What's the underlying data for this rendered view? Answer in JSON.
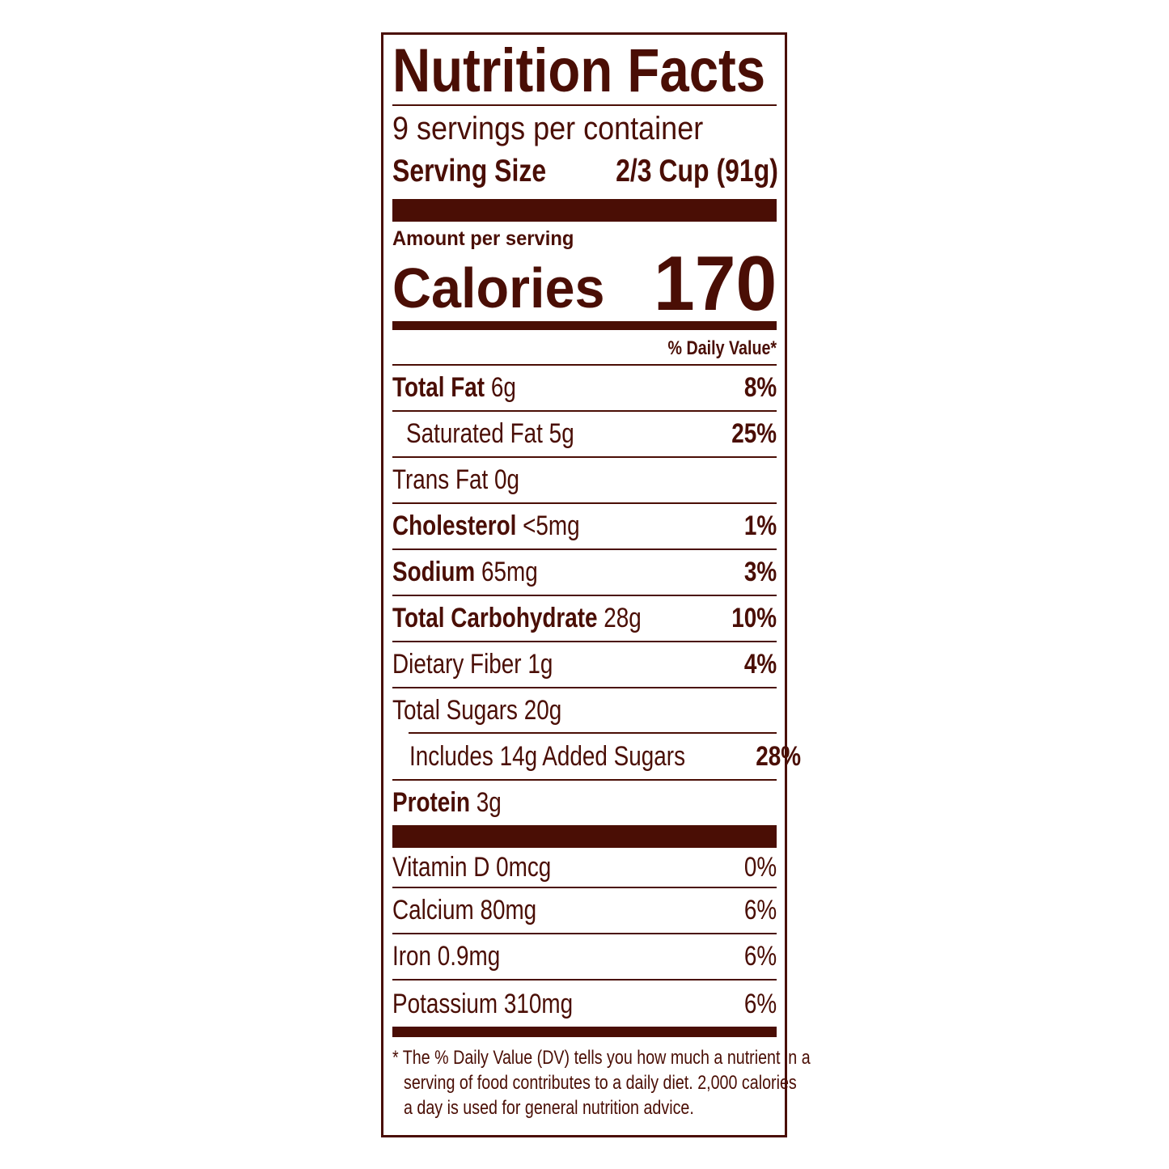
{
  "colors": {
    "ink": "#4a0e05",
    "background": "#ffffff"
  },
  "title": "Nutrition Facts",
  "servings_per_container": "9 servings per container",
  "serving_size": {
    "label": "Serving Size",
    "value": "2/3 Cup (91g)"
  },
  "amount_per_serving": "Amount per serving",
  "calories": {
    "label": "Calories",
    "value": "170"
  },
  "daily_value_header": "% Daily Value*",
  "nutrients": [
    {
      "name": "Total Fat",
      "amount": "6g",
      "dv": "8%"
    },
    {
      "name": "Saturated Fat",
      "amount": "5g",
      "dv": "25%"
    },
    {
      "name": "Trans Fat",
      "amount": "0g",
      "dv": ""
    },
    {
      "name": "Cholesterol",
      "amount": "<5mg",
      "dv": "1%"
    },
    {
      "name": "Sodium",
      "amount": "65mg",
      "dv": "3%"
    },
    {
      "name": "Total Carbohydrate",
      "amount": "28g",
      "dv": "10%"
    },
    {
      "name": "Dietary Fiber",
      "amount": "1g",
      "dv": "4%"
    },
    {
      "name": "Total Sugars",
      "amount": "20g",
      "dv": ""
    },
    {
      "name": "Includes 14g Added Sugars",
      "amount": "",
      "dv": "28%"
    },
    {
      "name": "Protein",
      "amount": "3g",
      "dv": ""
    }
  ],
  "vitamins": [
    {
      "text": "Vitamin D 0mcg",
      "dv": "0%"
    },
    {
      "text": "Calcium 80mg",
      "dv": "6%"
    },
    {
      "text": "Iron 0.9mg",
      "dv": "6%"
    },
    {
      "text": "Potassium 310mg",
      "dv": "6%"
    }
  ],
  "footnote": {
    "lines": [
      "* The % Daily Value (DV) tells you how much a nutrient in a",
      "serving of food contributes to a daily diet. 2,000 calories",
      "a day is used for general nutrition advice."
    ]
  }
}
